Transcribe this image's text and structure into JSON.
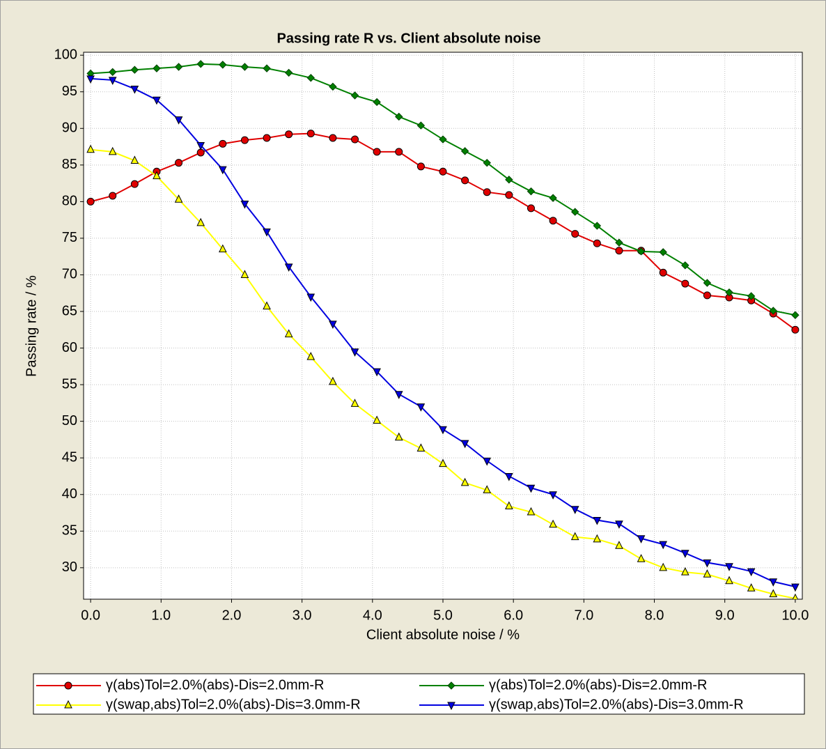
{
  "chart_data": {
    "type": "line",
    "title": "Passing rate R vs. Client absolute noise",
    "x_label": "Client absolute noise / %",
    "y_label": "Passing rate / %",
    "x": [
      0,
      0.3125,
      0.625,
      0.9375,
      1.25,
      1.5625,
      1.875,
      2.1875,
      2.5,
      2.8125,
      3.125,
      3.4375,
      3.75,
      4.0625,
      4.375,
      4.6875,
      5,
      5.3125,
      5.625,
      5.9375,
      6.25,
      6.5625,
      6.875,
      7.1875,
      7.5,
      7.8125,
      8.125,
      8.4375,
      8.75,
      9.0625,
      9.375,
      9.6875,
      10
    ],
    "series": [
      {
        "name": "γ(abs)Tol=2.0%(abs)-Dis=2.0mm-R",
        "color": "#e00000",
        "marker": "circle",
        "values": [
          80.0,
          80.8,
          82.4,
          84.1,
          85.3,
          86.7,
          87.9,
          88.4,
          88.7,
          89.2,
          89.3,
          88.7,
          88.5,
          86.8,
          86.8,
          84.8,
          84.1,
          82.9,
          81.3,
          80.9,
          79.1,
          77.4,
          75.6,
          74.3,
          73.3,
          73.3,
          70.3,
          68.8,
          67.2,
          66.9,
          66.5,
          64.7,
          62.5
        ]
      },
      {
        "name": "γ(abs)Tol=2.0%(abs)-Dis=2.0mm-R",
        "color": "#008000",
        "marker": "diamond",
        "values": [
          97.5,
          97.7,
          98.0,
          98.2,
          98.4,
          98.8,
          98.7,
          98.4,
          98.2,
          97.6,
          96.9,
          95.7,
          94.5,
          93.6,
          91.6,
          90.4,
          88.5,
          86.9,
          85.3,
          83.0,
          81.4,
          80.5,
          78.6,
          76.7,
          74.4,
          73.2,
          73.1,
          71.3,
          68.9,
          67.6,
          67.1,
          65.1,
          64.5
        ]
      },
      {
        "name": "γ(swap,abs)Tol=2.0%(abs)-Dis=3.0mm-R",
        "color": "#ffff00",
        "marker": "triangle-up",
        "values": [
          87.1,
          86.8,
          85.6,
          83.5,
          80.3,
          77.1,
          73.5,
          70.0,
          65.7,
          61.9,
          58.8,
          55.4,
          52.4,
          50.1,
          47.8,
          46.3,
          44.2,
          41.6,
          40.6,
          38.4,
          37.6,
          35.9,
          34.2,
          33.9,
          33.0,
          31.2,
          30.0,
          29.4,
          29.1,
          28.2,
          27.2,
          26.4,
          25.8
        ]
      },
      {
        "name": "γ(swap,abs)Tol=2.0%(abs)-Dis=3.0mm-R",
        "color": "#0000e0",
        "marker": "triangle-down",
        "values": [
          96.8,
          96.6,
          95.4,
          93.9,
          91.2,
          87.7,
          84.4,
          79.7,
          75.9,
          71.1,
          67.0,
          63.3,
          59.5,
          56.8,
          53.7,
          52.0,
          48.9,
          47.0,
          44.6,
          42.5,
          40.9,
          40.0,
          38.0,
          36.5,
          36.0,
          34.0,
          33.2,
          32.0,
          30.7,
          30.2,
          29.5,
          28.1,
          27.4
        ]
      }
    ],
    "xlim": [
      -0.1,
      10.1
    ],
    "xticks": [
      {
        "value": 0,
        "label": "0.0"
      },
      {
        "value": 1,
        "label": "1.0"
      },
      {
        "value": 2,
        "label": "2.0"
      },
      {
        "value": 3,
        "label": "3.0"
      },
      {
        "value": 4,
        "label": "4.0"
      },
      {
        "value": 5,
        "label": "5.0"
      },
      {
        "value": 6,
        "label": "6.0"
      },
      {
        "value": 7,
        "label": "7.0"
      },
      {
        "value": 8,
        "label": "8.0"
      },
      {
        "value": 9,
        "label": "9.0"
      },
      {
        "value": 10,
        "label": "10.0"
      }
    ],
    "ylim": [
      25.7,
      100.4
    ],
    "yticks": [
      30,
      35,
      40,
      45,
      50,
      55,
      60,
      65,
      70,
      75,
      80,
      85,
      90,
      95,
      100
    ],
    "grid": true,
    "legend": "bottom"
  }
}
